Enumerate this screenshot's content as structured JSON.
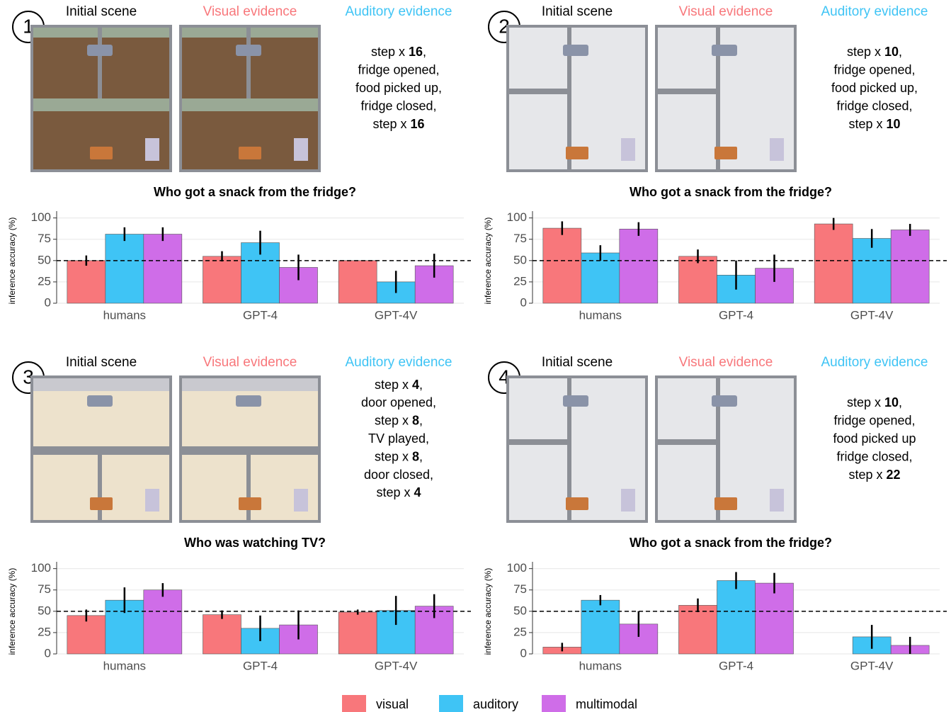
{
  "chart_data": [
    {
      "type": "bar",
      "panel": "1",
      "headers": [
        "Initial scene",
        "Visual evidence",
        "Auditory evidence"
      ],
      "description": [
        [
          "step x ",
          "16",
          ","
        ],
        [
          "fridge opened,"
        ],
        [
          "food picked up,"
        ],
        [
          "fridge closed,"
        ],
        [
          "step x ",
          "16"
        ]
      ],
      "title": "Who got a snack from the fridge?",
      "ylabel": "inference accuracy (%)",
      "categories": [
        "humans",
        "GPT-4",
        "GPT-4V"
      ],
      "series": [
        {
          "name": "visual",
          "color": "#f8777b",
          "values": [
            50,
            55,
            50
          ],
          "errors": [
            6,
            6,
            0
          ]
        },
        {
          "name": "auditory",
          "color": "#3fc4f5",
          "values": [
            81,
            71,
            25
          ],
          "errors": [
            8,
            14,
            13
          ]
        },
        {
          "name": "multimodal",
          "color": "#cf6de8",
          "values": [
            81,
            42,
            44
          ],
          "errors": [
            8,
            15,
            14
          ]
        }
      ],
      "ylim": [
        0,
        108
      ],
      "yticks": [
        0,
        25,
        50,
        75,
        100
      ],
      "hline": 50,
      "grid": true
    },
    {
      "type": "bar",
      "panel": "2",
      "headers": [
        "Initial scene",
        "Visual evidence",
        "Auditory evidence"
      ],
      "description": [
        [
          "step x ",
          "10",
          ","
        ],
        [
          "fridge opened,"
        ],
        [
          "food picked up,"
        ],
        [
          "fridge closed,"
        ],
        [
          "step x ",
          "10"
        ]
      ],
      "title": "Who got a snack from the fridge?",
      "ylabel": "inference accuracy (%)",
      "categories": [
        "humans",
        "GPT-4",
        "GPT-4V"
      ],
      "series": [
        {
          "name": "visual",
          "color": "#f8777b",
          "values": [
            88,
            55,
            93
          ],
          "errors": [
            8,
            8,
            7
          ]
        },
        {
          "name": "auditory",
          "color": "#3fc4f5",
          "values": [
            59,
            33,
            76
          ],
          "errors": [
            9,
            17,
            11
          ]
        },
        {
          "name": "multimodal",
          "color": "#cf6de8",
          "values": [
            87,
            41,
            86
          ],
          "errors": [
            8,
            16,
            7
          ]
        }
      ],
      "ylim": [
        0,
        108
      ],
      "yticks": [
        0,
        25,
        50,
        75,
        100
      ],
      "hline": 50,
      "grid": true
    },
    {
      "type": "bar",
      "panel": "3",
      "headers": [
        "Initial scene",
        "Visual evidence",
        "Auditory evidence"
      ],
      "description": [
        [
          "step x ",
          "4",
          ","
        ],
        [
          "door opened,"
        ],
        [
          "step x ",
          "8",
          ","
        ],
        [
          "TV played,"
        ],
        [
          "step x ",
          "8",
          ","
        ],
        [
          "door closed,"
        ],
        [
          "step x ",
          "4"
        ]
      ],
      "title": "Who was watching TV?",
      "ylabel": "inference accuracy (%)",
      "categories": [
        "humans",
        "GPT-4",
        "GPT-4V"
      ],
      "series": [
        {
          "name": "visual",
          "color": "#f8777b",
          "values": [
            45,
            46,
            49
          ],
          "errors": [
            7,
            5,
            3
          ]
        },
        {
          "name": "auditory",
          "color": "#3fc4f5",
          "values": [
            63,
            30,
            51
          ],
          "errors": [
            15,
            15,
            17
          ]
        },
        {
          "name": "multimodal",
          "color": "#cf6de8",
          "values": [
            75,
            34,
            56
          ],
          "errors": [
            8,
            17,
            14
          ]
        }
      ],
      "ylim": [
        0,
        108
      ],
      "yticks": [
        0,
        25,
        50,
        75,
        100
      ],
      "hline": 50,
      "grid": true
    },
    {
      "type": "bar",
      "panel": "4",
      "headers": [
        "Initial scene",
        "Visual evidence",
        "Auditory evidence"
      ],
      "description": [
        [
          "step x ",
          "10",
          ","
        ],
        [
          "fridge opened,"
        ],
        [
          "food picked up"
        ],
        [
          "fridge closed,"
        ],
        [
          "step x ",
          "22"
        ]
      ],
      "title": "Who got a snack from the fridge?",
      "ylabel": "inference accuracy (%)",
      "categories": [
        "humans",
        "GPT-4",
        "GPT-4V"
      ],
      "series": [
        {
          "name": "visual",
          "color": "#f8777b",
          "values": [
            8,
            57,
            0
          ],
          "errors": [
            5,
            8,
            0
          ]
        },
        {
          "name": "auditory",
          "color": "#3fc4f5",
          "values": [
            63,
            86,
            20
          ],
          "errors": [
            6,
            10,
            14
          ]
        },
        {
          "name": "multimodal",
          "color": "#cf6de8",
          "values": [
            35,
            83,
            10
          ],
          "errors": [
            15,
            12,
            10
          ]
        }
      ],
      "ylim": [
        0,
        108
      ],
      "yticks": [
        0,
        25,
        50,
        75,
        100
      ],
      "hline": 50,
      "grid": true
    }
  ]
}
